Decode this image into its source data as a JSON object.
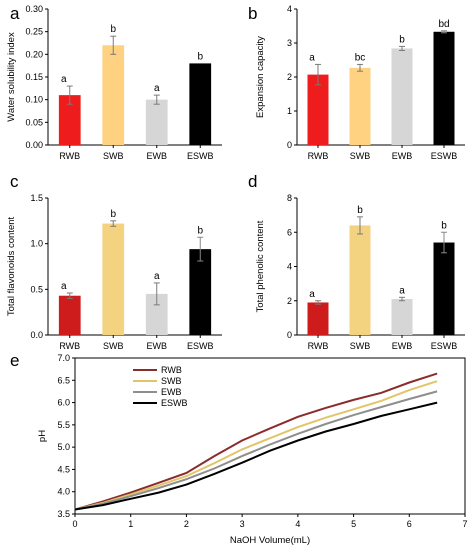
{
  "chart_data": [
    {
      "panel": "a",
      "type": "bar",
      "categories": [
        "RWB",
        "SWB",
        "EWB",
        "ESWB"
      ],
      "values": [
        0.11,
        0.22,
        0.1,
        0.18
      ],
      "errors": [
        0.02,
        0.02,
        0.01,
        0.0
      ],
      "significance": [
        "a",
        "b",
        "a",
        "b"
      ],
      "ylabel": "Water solubility index",
      "ylim": [
        0,
        0.3
      ],
      "yticks": [
        "0.00",
        "0.05",
        "0.10",
        "0.15",
        "0.20",
        "0.25",
        "0.30"
      ],
      "bar_colors": [
        "#ee1c1c",
        "#fed280",
        "#d6d6d6",
        "#000000"
      ]
    },
    {
      "panel": "b",
      "type": "bar",
      "categories": [
        "RWB",
        "SWB",
        "EWB",
        "ESWB"
      ],
      "values": [
        2.07,
        2.27,
        2.84,
        3.33
      ],
      "errors": [
        0.3,
        0.1,
        0.06,
        0.03
      ],
      "significance": [
        "a",
        "bc",
        "b",
        "bd"
      ],
      "ylabel": "Expansion capacity",
      "ylim": [
        0,
        4
      ],
      "yticks": [
        "0",
        "1",
        "2",
        "3",
        "4"
      ],
      "bar_colors": [
        "#ee1c1c",
        "#fed280",
        "#d6d6d6",
        "#000000"
      ]
    },
    {
      "panel": "c",
      "type": "bar",
      "categories": [
        "RWB",
        "SWB",
        "EWB",
        "ESWB"
      ],
      "values": [
        0.43,
        1.22,
        0.45,
        0.94
      ],
      "errors": [
        0.03,
        0.03,
        0.12,
        0.13
      ],
      "significance": [
        "a",
        "b",
        "a",
        "b"
      ],
      "ylabel": "Total flavonoids content",
      "ylim": [
        0,
        1.5
      ],
      "yticks": [
        "0.0",
        "0.5",
        "1.0",
        "1.5"
      ],
      "bar_colors": [
        "#ce1c1c",
        "#f3d280",
        "#d6d6d6",
        "#000000"
      ]
    },
    {
      "panel": "d",
      "type": "bar",
      "categories": [
        "RWB",
        "SWB",
        "EWB",
        "ESWB"
      ],
      "values": [
        1.9,
        6.4,
        2.1,
        5.4
      ],
      "errors": [
        0.1,
        0.5,
        0.1,
        0.6
      ],
      "significance": [
        "a",
        "b",
        "a",
        "b"
      ],
      "ylabel": "Total phenolic content",
      "ylim": [
        0,
        8
      ],
      "yticks": [
        "0",
        "2",
        "4",
        "6",
        "8"
      ],
      "bar_colors": [
        "#ce1c1c",
        "#f3d280",
        "#d6d6d6",
        "#000000"
      ]
    },
    {
      "panel": "e",
      "type": "line",
      "xlabel": "NaOH Volume(mL)",
      "ylabel": "pH",
      "xlim": [
        0,
        7
      ],
      "ylim": [
        3.5,
        7.0
      ],
      "xticks": [
        "0",
        "1",
        "2",
        "3",
        "4",
        "5",
        "6",
        "7"
      ],
      "yticks": [
        "3.5",
        "4.0",
        "4.5",
        "5.0",
        "5.5",
        "6.0",
        "6.5",
        "7.0"
      ],
      "legend_position": "top-left",
      "series": [
        {
          "name": "RWB",
          "color": "#8b2c2c",
          "x": [
            0,
            0.5,
            1,
            1.5,
            2,
            2.5,
            3,
            3.5,
            4,
            4.5,
            5,
            5.5,
            6,
            6.5
          ],
          "y": [
            3.6,
            3.78,
            3.98,
            4.2,
            4.42,
            4.8,
            5.15,
            5.42,
            5.68,
            5.88,
            6.06,
            6.22,
            6.45,
            6.65
          ]
        },
        {
          "name": "SWB",
          "color": "#e3c46a",
          "x": [
            0,
            0.5,
            1,
            1.5,
            2,
            2.5,
            3,
            3.5,
            4,
            4.5,
            5,
            5.5,
            6,
            6.5
          ],
          "y": [
            3.6,
            3.75,
            3.94,
            4.14,
            4.35,
            4.64,
            4.95,
            5.2,
            5.45,
            5.66,
            5.85,
            6.04,
            6.28,
            6.48
          ]
        },
        {
          "name": "EWB",
          "color": "#8e8e8e",
          "x": [
            0,
            0.5,
            1,
            1.5,
            2,
            2.5,
            3,
            3.5,
            4,
            4.5,
            5,
            5.5,
            6,
            6.5
          ],
          "y": [
            3.6,
            3.73,
            3.9,
            4.08,
            4.28,
            4.52,
            4.8,
            5.06,
            5.3,
            5.52,
            5.72,
            5.9,
            6.08,
            6.25
          ]
        },
        {
          "name": "ESWB",
          "color": "#000000",
          "x": [
            0,
            0.5,
            1,
            1.5,
            2,
            2.5,
            3,
            3.5,
            4,
            4.5,
            5,
            5.5,
            6,
            6.5
          ],
          "y": [
            3.6,
            3.7,
            3.84,
            3.98,
            4.16,
            4.4,
            4.65,
            4.92,
            5.15,
            5.35,
            5.52,
            5.7,
            5.85,
            6.0
          ]
        }
      ]
    }
  ]
}
